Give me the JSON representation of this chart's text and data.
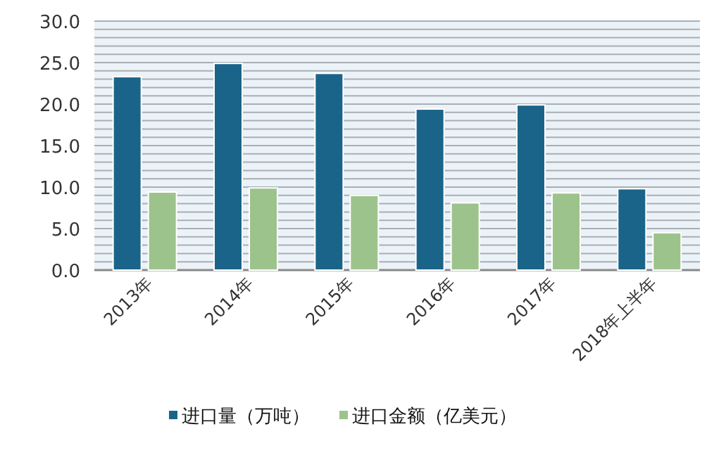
{
  "chart_data": {
    "type": "bar",
    "categories": [
      "2013年",
      "2014年",
      "2015年",
      "2016年",
      "2017年",
      "2018年上半年"
    ],
    "series": [
      {
        "name": "进口量（万吨）",
        "color": "#1b6489",
        "values": [
          23.3,
          24.9,
          23.7,
          19.4,
          19.9,
          9.8
        ]
      },
      {
        "name": "进口金额（亿美元）",
        "color": "#9dc38c",
        "values": [
          9.4,
          9.9,
          9.0,
          8.1,
          9.3,
          4.5
        ]
      }
    ],
    "ylim": [
      0,
      30
    ],
    "yticks": [
      {
        "value": 0,
        "label": "0.0"
      },
      {
        "value": 1,
        "label": null
      },
      {
        "value": 2,
        "label": null
      },
      {
        "value": 3,
        "label": null
      },
      {
        "value": 4,
        "label": null
      },
      {
        "value": 5,
        "label": "5.0"
      },
      {
        "value": 6,
        "label": null
      },
      {
        "value": 7,
        "label": null
      },
      {
        "value": 8,
        "label": null
      },
      {
        "value": 9,
        "label": null
      },
      {
        "value": 10,
        "label": "10.0"
      },
      {
        "value": 11,
        "label": null
      },
      {
        "value": 12,
        "label": null
      },
      {
        "value": 13,
        "label": null
      },
      {
        "value": 14,
        "label": null
      },
      {
        "value": 15,
        "label": "15.0"
      },
      {
        "value": 16,
        "label": null
      },
      {
        "value": 17,
        "label": null
      },
      {
        "value": 18,
        "label": null
      },
      {
        "value": 19,
        "label": null
      },
      {
        "value": 20,
        "label": "20.0"
      },
      {
        "value": 21,
        "label": null
      },
      {
        "value": 22,
        "label": null
      },
      {
        "value": 23,
        "label": null
      },
      {
        "value": 24,
        "label": null
      },
      {
        "value": 25,
        "label": "25.0"
      },
      {
        "value": 26,
        "label": null
      },
      {
        "value": 27,
        "label": null
      },
      {
        "value": 28,
        "label": null
      },
      {
        "value": 29,
        "label": null
      },
      {
        "value": 30,
        "label": "30.0"
      }
    ],
    "grid": "y",
    "legend": "bottom"
  }
}
